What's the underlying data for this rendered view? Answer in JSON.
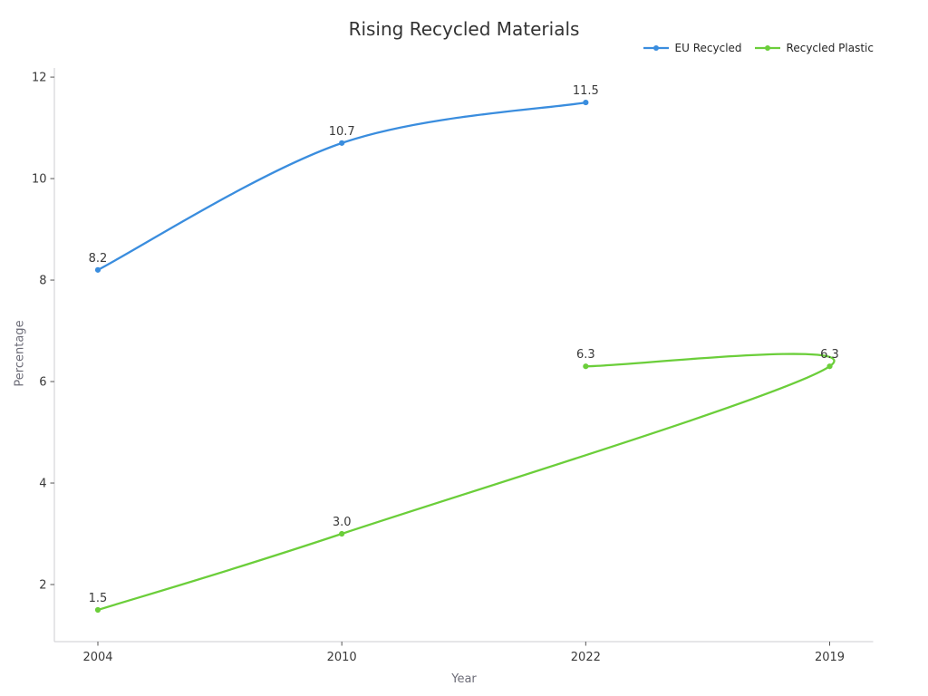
{
  "title": "Rising Recycled Materials",
  "chart_data": {
    "type": "line",
    "title": "Rising Recycled Materials",
    "xlabel": "Year",
    "ylabel": "Percentage",
    "categories": [
      "2004",
      "2010",
      "2022",
      "2019"
    ],
    "yticks": [
      "2",
      "4",
      "6",
      "8",
      "10",
      "12"
    ],
    "ylim": [
      0.875,
      12.18
    ],
    "grid": false,
    "smooth": true,
    "legend_position": "top-right",
    "series": [
      {
        "name": "EU Recycled",
        "color": "#3a8dde",
        "points": [
          {
            "x": "2004",
            "y": 8.2,
            "label": "8.2"
          },
          {
            "x": "2010",
            "y": 10.7,
            "label": "10.7"
          },
          {
            "x": "2022",
            "y": 11.5,
            "label": "11.5"
          }
        ]
      },
      {
        "name": "Recycled Plastic",
        "color": "#6bce3a",
        "points": [
          {
            "x": "2004",
            "y": 1.5,
            "label": "1.5"
          },
          {
            "x": "2010",
            "y": 3.0,
            "label": "3.0"
          },
          {
            "x": "2019",
            "y": 6.3,
            "label": "6.3"
          },
          {
            "x": "2022",
            "y": 6.3,
            "label": "6.3"
          }
        ]
      }
    ],
    "colors": {
      "background": "#ffffff",
      "title_text": "#333333",
      "tick_text": "#3a3a3a",
      "axis_label_text": "#6d6d78",
      "spine": "#cdccd2",
      "tick_mark": "#555555"
    }
  }
}
